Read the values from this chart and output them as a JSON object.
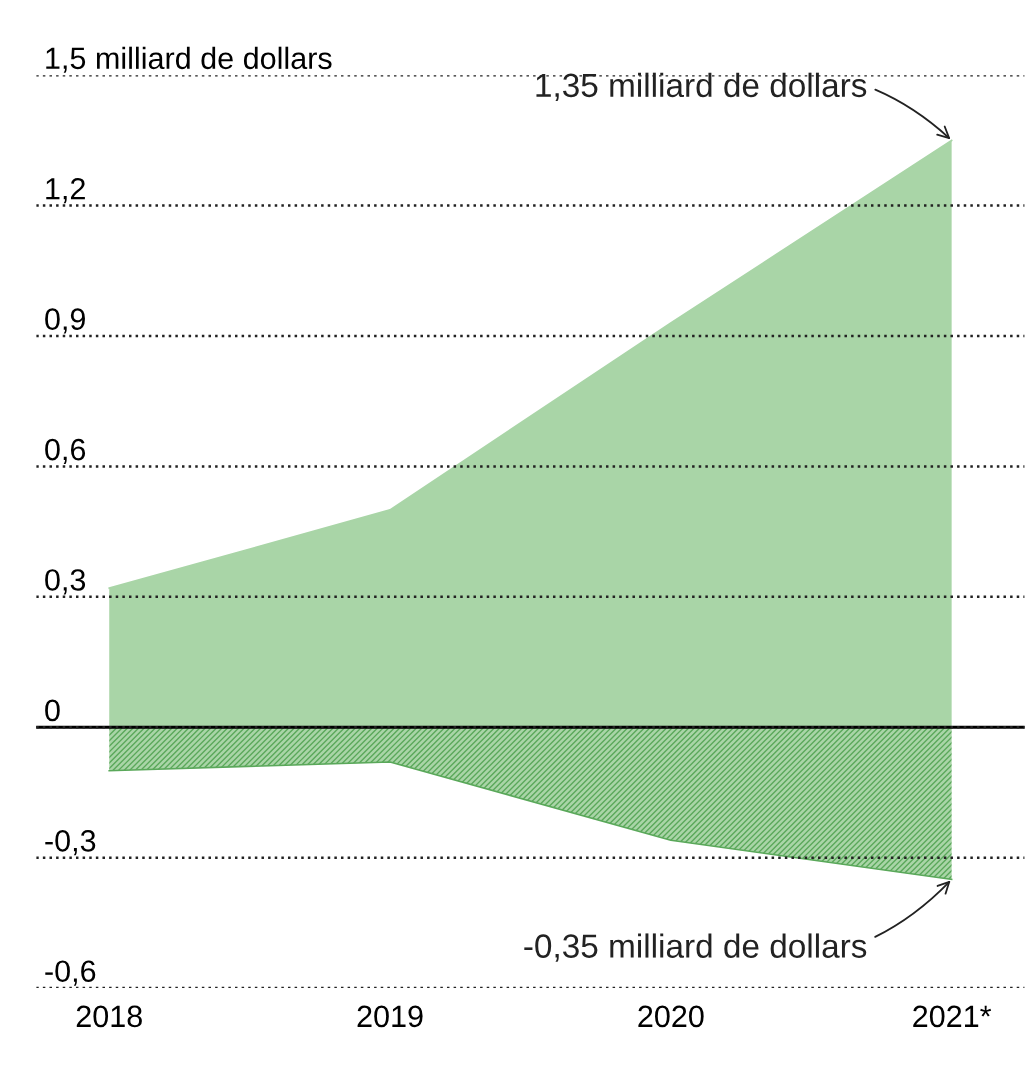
{
  "chart_data": {
    "type": "area",
    "categories": [
      "2018",
      "2019",
      "2020",
      "2021*"
    ],
    "series": [
      {
        "color": "#a9d5a7",
        "values": [
          0.32,
          0.5,
          0.93,
          1.35
        ]
      },
      {
        "color": "#5aa85a",
        "values": [
          -0.1,
          -0.08,
          -0.26,
          -0.35
        ]
      }
    ],
    "ylim": [
      -0.6,
      1.5
    ],
    "yticks": [
      {
        "value": -0.6,
        "label": "-0,6"
      },
      {
        "value": -0.3,
        "label": "-0,3"
      },
      0,
      {
        "value": 0.3,
        "label": "0,3"
      },
      {
        "value": 0.6,
        "label": "0,6"
      },
      {
        "value": 0.9,
        "label": "0,9"
      },
      {
        "value": 1.2,
        "label": "1,2"
      },
      {
        "value": 1.5,
        "label": "1,5 milliard de dollars"
      }
    ],
    "grid": "y",
    "line_style": "dotted",
    "ref_lines": [
      {
        "axis": "y",
        "value": 0,
        "color": "#000000",
        "line_style": "solid"
      }
    ],
    "annotations": [
      {
        "text": "1,35 milliard de dollars",
        "x": "2021*",
        "y": 1.35
      },
      {
        "text": "-0,35 milliard de dollars",
        "x": "2021*",
        "y": -0.35
      }
    ]
  }
}
